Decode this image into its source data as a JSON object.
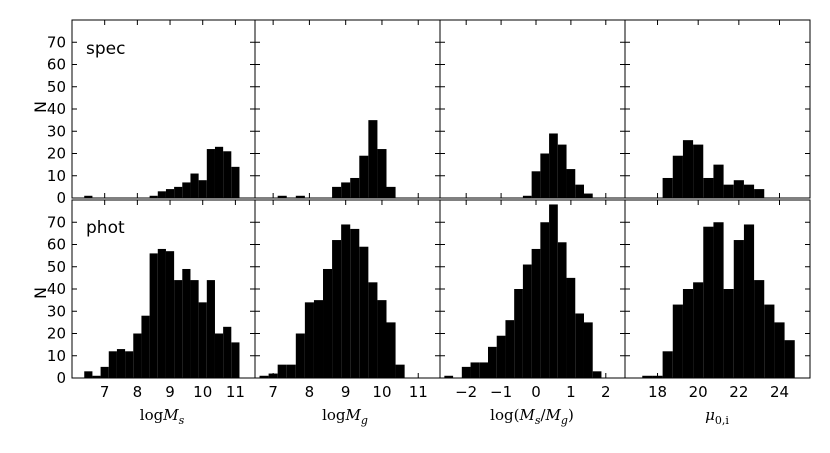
{
  "chart_data": {
    "type": "bar",
    "ylabel": "N",
    "ylim": [
      0,
      80
    ],
    "yticks": [
      0,
      10,
      20,
      30,
      40,
      50,
      60,
      70
    ],
    "rows": [
      "spec",
      "phot"
    ],
    "columns": [
      {
        "xlabel": "logM_s",
        "xlim": [
          6.0,
          11.6
        ],
        "xticks": [
          7,
          8,
          9,
          10,
          11
        ],
        "bin_width": 0.25,
        "spec": {
          "x": [
            6.5,
            6.75,
            7.0,
            7.25,
            7.5,
            7.75,
            8.0,
            8.25,
            8.5,
            8.75,
            9.0,
            9.25,
            9.5,
            9.75,
            10.0,
            10.25,
            10.5,
            10.75,
            11.0
          ],
          "y": [
            1,
            0,
            0,
            0,
            0,
            0,
            0,
            0,
            1,
            3,
            4,
            5,
            7,
            11,
            8,
            22,
            23,
            21,
            14
          ]
        },
        "phot": {
          "x": [
            6.5,
            6.75,
            7.0,
            7.25,
            7.5,
            7.75,
            8.0,
            8.25,
            8.5,
            8.75,
            9.0,
            9.25,
            9.5,
            9.75,
            10.0,
            10.25,
            10.5,
            10.75,
            11.0
          ],
          "y": [
            3,
            1,
            5,
            12,
            13,
            12,
            20,
            28,
            56,
            58,
            57,
            44,
            49,
            44,
            34,
            44,
            20,
            23,
            16
          ]
        }
      },
      {
        "xlabel": "logM_g",
        "xlim": [
          6.5,
          11.6
        ],
        "xticks": [
          7,
          8,
          9,
          10,
          11
        ],
        "bin_width": 0.25,
        "spec": {
          "x": [
            7.25,
            7.75,
            8.75,
            9.0,
            9.25,
            9.5,
            9.75,
            10.0,
            10.25
          ],
          "y": [
            1,
            1,
            5,
            7,
            9,
            19,
            35,
            22,
            5
          ]
        },
        "phot": {
          "x": [
            6.75,
            7.0,
            7.25,
            7.5,
            7.75,
            8.0,
            8.25,
            8.5,
            8.75,
            9.0,
            9.25,
            9.5,
            9.75,
            10.0,
            10.25,
            10.5
          ],
          "y": [
            1,
            2,
            6,
            6,
            20,
            34,
            35,
            49,
            62,
            69,
            67,
            59,
            43,
            35,
            25,
            6
          ]
        }
      },
      {
        "xlabel": "log(M_s/M_g)",
        "xlim": [
          -2.75,
          2.55
        ],
        "xticks": [
          -2,
          -1,
          0,
          1,
          2
        ],
        "bin_width": 0.25,
        "spec": {
          "x": [
            -0.25,
            0.0,
            0.25,
            0.5,
            0.75,
            1.0,
            1.25,
            1.5
          ],
          "y": [
            1,
            12,
            20,
            29,
            24,
            13,
            6,
            2
          ]
        },
        "phot": {
          "x": [
            -2.5,
            -2.25,
            -2.0,
            -1.75,
            -1.5,
            -1.25,
            -1.0,
            -0.75,
            -0.5,
            -0.25,
            0.0,
            0.25,
            0.5,
            0.75,
            1.0,
            1.25,
            1.5,
            1.75
          ],
          "y": [
            1,
            0,
            5,
            7,
            7,
            14,
            19,
            26,
            40,
            51,
            58,
            70,
            78,
            61,
            45,
            29,
            25,
            3
          ]
        }
      },
      {
        "xlabel": "μ_0,i",
        "xlim": [
          16.4,
          25.5
        ],
        "xticks": [
          18,
          20,
          22,
          24
        ],
        "bin_width": 0.5,
        "spec": {
          "x": [
            18.5,
            19.0,
            19.5,
            20.0,
            20.5,
            21.0,
            21.5,
            22.0,
            22.5,
            23.0
          ],
          "y": [
            9,
            19,
            26,
            24,
            9,
            15,
            6,
            8,
            6,
            4
          ]
        },
        "phot": {
          "x": [
            17.5,
            18.0,
            18.5,
            19.0,
            19.5,
            20.0,
            20.5,
            21.0,
            21.5,
            22.0,
            22.5,
            23.0,
            23.5,
            24.0,
            24.5
          ],
          "y": [
            1,
            1,
            12,
            33,
            40,
            43,
            68,
            70,
            40,
            62,
            69,
            44,
            33,
            25,
            17
          ]
        }
      }
    ]
  },
  "labels": {
    "spec": "spec",
    "phot": "phot",
    "ylabel": "N"
  }
}
